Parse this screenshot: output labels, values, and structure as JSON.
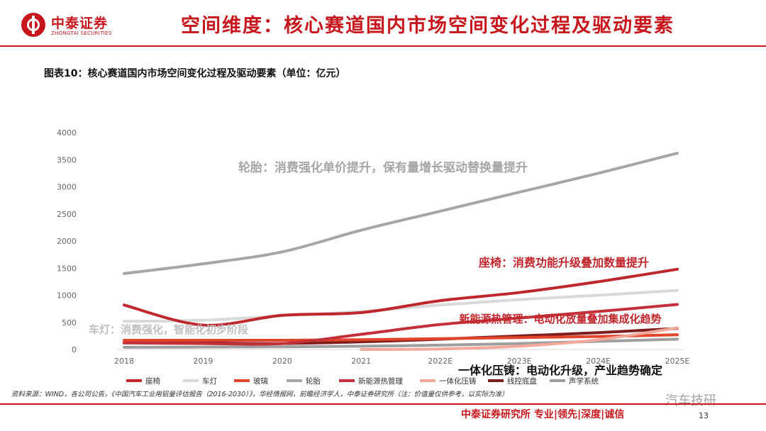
{
  "header": {
    "logo_cn": "中泰证券",
    "logo_en": "ZHONGTAI SECURITIES",
    "title": "空间维度：核心赛道国内市场空间变化过程及驱动要素"
  },
  "figure_title": "图表10：核心赛道国内市场空间变化过程及驱动要素（单位：亿元）",
  "chart_data": {
    "type": "line",
    "categories": [
      "2018",
      "2019",
      "2020",
      "2021",
      "2022E",
      "2023E",
      "2024E",
      "2025E"
    ],
    "ylim": [
      0,
      4000
    ],
    "yticks": [
      0,
      500,
      1000,
      1500,
      2000,
      2500,
      3000,
      3500,
      4000
    ],
    "grid": false,
    "legend_position": "bottom",
    "series": [
      {
        "name": "座椅",
        "color": "#c0272d",
        "values": [
          820,
          450,
          630,
          680,
          900,
          1050,
          1250,
          1480
        ]
      },
      {
        "name": "车灯",
        "color": "#d9d9d9",
        "values": [
          520,
          540,
          620,
          700,
          820,
          920,
          1000,
          1090
        ]
      },
      {
        "name": "玻璃",
        "color": "#e0452c",
        "values": [
          170,
          170,
          170,
          180,
          200,
          220,
          240,
          270
        ]
      },
      {
        "name": "轮胎",
        "color": "#a6a6a6",
        "values": [
          1400,
          1580,
          1800,
          2200,
          2550,
          2900,
          3250,
          3620
        ]
      },
      {
        "name": "新能源热管理",
        "color": "#c43039",
        "values": [
          120,
          110,
          110,
          280,
          460,
          580,
          700,
          830
        ]
      },
      {
        "name": "一体化压铸",
        "color": "#f4a89a",
        "values": [
          null,
          null,
          null,
          0,
          10,
          60,
          180,
          400
        ]
      },
      {
        "name": "线控底盘",
        "color": "#7f1d1d",
        "values": [
          130,
          120,
          110,
          140,
          190,
          250,
          310,
          390
        ]
      },
      {
        "name": "声学系统",
        "color": "#9e9e9e",
        "values": [
          40,
          45,
          50,
          60,
          80,
          110,
          150,
          190
        ]
      }
    ],
    "annotations": [
      {
        "text": "轮胎：消费强化单价提升，保有量增长驱动替换量提升",
        "color": "#a6a6a6"
      },
      {
        "text": "座椅：消费功能升级叠加数量提升",
        "color": "#c0272d"
      },
      {
        "text": "新能源热管理：电动化放量叠加集成化趋势",
        "color": "#c0272d"
      },
      {
        "text": "车灯：消费强化，智能化初步阶段",
        "color": "#bfbfbf"
      },
      {
        "text": "一体化压铸：电动化升级，产业趋势确定",
        "color": "#111111"
      }
    ]
  },
  "source": "资料来源：WIND，各公司公告，《中国汽车工业用铝量评估报告（2016-2030）》，华经情报网，前瞻经济学人，中泰证券研究所（注：价值量仅供参考，以实际为准）",
  "footer": {
    "text": "中泰证券研究所 专业|领先|深度|诚信",
    "page": "13",
    "watermark": "汽车技研"
  }
}
